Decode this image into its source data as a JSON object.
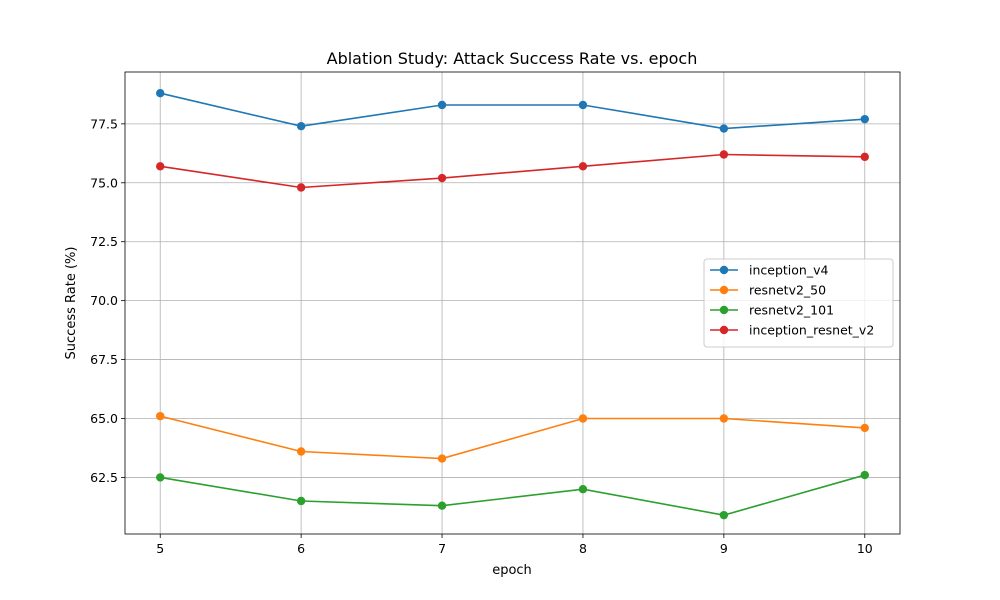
{
  "chart_data": {
    "type": "line",
    "title": "Ablation Study: Attack Success Rate vs. epoch",
    "xlabel": "epoch",
    "ylabel": "Success Rate (%)",
    "x": [
      5,
      6,
      7,
      8,
      9,
      10
    ],
    "xlim": [
      4.75,
      10.25
    ],
    "ylim": [
      60.1,
      79.7
    ],
    "xticks": [
      "5",
      "6",
      "7",
      "8",
      "9",
      "10"
    ],
    "yticks": [
      "62.5",
      "65.0",
      "67.5",
      "70.0",
      "72.5",
      "75.0",
      "77.5"
    ],
    "grid": true,
    "legend_position": "center-right",
    "series": [
      {
        "name": "inception_v4",
        "color": "#1f77b4",
        "values": [
          78.8,
          77.4,
          78.3,
          78.3,
          77.3,
          77.7
        ]
      },
      {
        "name": "resnetv2_50",
        "color": "#ff7f0e",
        "values": [
          65.1,
          63.6,
          63.3,
          65.0,
          65.0,
          64.6
        ]
      },
      {
        "name": "resnetv2_101",
        "color": "#2ca02c",
        "values": [
          62.5,
          61.5,
          61.3,
          62.0,
          60.9,
          62.6
        ]
      },
      {
        "name": "inception_resnet_v2",
        "color": "#d62728",
        "values": [
          75.7,
          74.8,
          75.2,
          75.7,
          76.2,
          76.1
        ]
      }
    ]
  }
}
